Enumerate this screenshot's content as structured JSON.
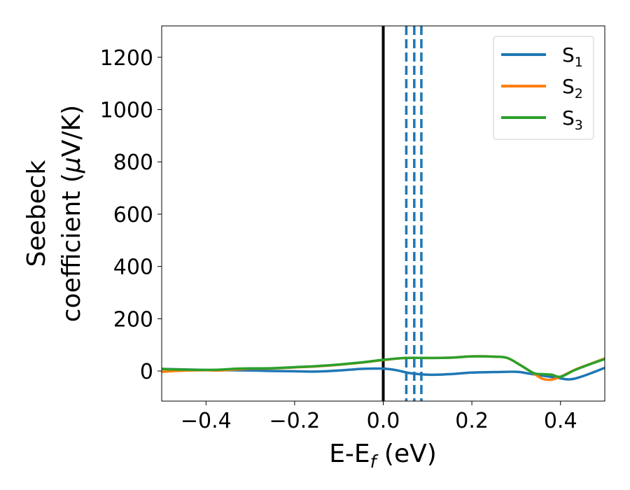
{
  "chart_data": {
    "type": "line",
    "xlabel": "E-E",
    "xlabel_sub": "f",
    "xlabel_unit": " (eV)",
    "ylabel_line1": "Seebeck",
    "ylabel_line2_prefix": "coefficient  (",
    "ylabel_mu": "μ",
    "ylabel_line2_suffix": "V/K)",
    "xlim": [
      -0.5,
      0.5
    ],
    "ylim": [
      -115,
      1320
    ],
    "x_ticks": [
      -0.4,
      -0.2,
      0.0,
      0.2,
      0.4
    ],
    "x_tick_labels": [
      "−0.4",
      "−0.2",
      "0.0",
      "0.2",
      "0.4"
    ],
    "y_ticks": [
      0,
      200,
      400,
      600,
      800,
      1000,
      1200
    ],
    "y_tick_labels": [
      "0",
      "200",
      "400",
      "600",
      "800",
      "1000",
      "1200"
    ],
    "legend_position": "upper-right",
    "grid": false,
    "series": [
      {
        "name": "S",
        "sub": "1",
        "color": "#1f77b4",
        "x": [
          -0.5,
          -0.45,
          -0.4,
          -0.35,
          -0.3,
          -0.25,
          -0.2,
          -0.15,
          -0.1,
          -0.05,
          0.0,
          0.03,
          0.06,
          0.1,
          0.15,
          0.2,
          0.25,
          0.3,
          0.33,
          0.36,
          0.39,
          0.42,
          0.45,
          0.5
        ],
        "y": [
          8,
          6,
          4,
          3,
          2,
          0,
          -1,
          -2,
          2,
          8,
          9,
          3,
          -8,
          -14,
          -12,
          -6,
          -4,
          -3,
          -10,
          -18,
          -25,
          -32,
          -20,
          12
        ]
      },
      {
        "name": "S",
        "sub": "2",
        "color": "#ff7f0e",
        "x": [
          -0.5,
          -0.47,
          -0.44,
          -0.4,
          -0.37,
          -0.33,
          -0.3,
          -0.25,
          -0.2,
          -0.15,
          -0.1,
          -0.05,
          0.0,
          0.05,
          0.1,
          0.15,
          0.2,
          0.25,
          0.28,
          0.31,
          0.34,
          0.36,
          0.38,
          0.4,
          0.43,
          0.46,
          0.5
        ],
        "y": [
          -3,
          0,
          2,
          3,
          2,
          6,
          9,
          10,
          14,
          18,
          24,
          32,
          42,
          50,
          50,
          51,
          56,
          55,
          50,
          22,
          -10,
          -30,
          -33,
          -22,
          3,
          23,
          48
        ]
      },
      {
        "name": "S",
        "sub": "3",
        "color": "#2ca02c",
        "x": [
          -0.5,
          -0.47,
          -0.44,
          -0.4,
          -0.37,
          -0.33,
          -0.3,
          -0.25,
          -0.2,
          -0.15,
          -0.1,
          -0.05,
          0.0,
          0.05,
          0.1,
          0.15,
          0.2,
          0.25,
          0.28,
          0.31,
          0.34,
          0.36,
          0.38,
          0.4,
          0.43,
          0.46,
          0.5
        ],
        "y": [
          8,
          6,
          5,
          4,
          5,
          9,
          10,
          11,
          15,
          19,
          25,
          33,
          43,
          50,
          50,
          51,
          56,
          55,
          50,
          22,
          -8,
          -12,
          -14,
          -22,
          2,
          22,
          46
        ]
      }
    ],
    "vlines": [
      {
        "x": 0.0,
        "color": "#000000",
        "style": "solid"
      },
      {
        "x": 0.052,
        "color": "#1f77b4",
        "style": "dashed"
      },
      {
        "x": 0.07,
        "color": "#1f77b4",
        "style": "dashed"
      },
      {
        "x": 0.086,
        "color": "#1f77b4",
        "style": "dashed"
      }
    ]
  }
}
